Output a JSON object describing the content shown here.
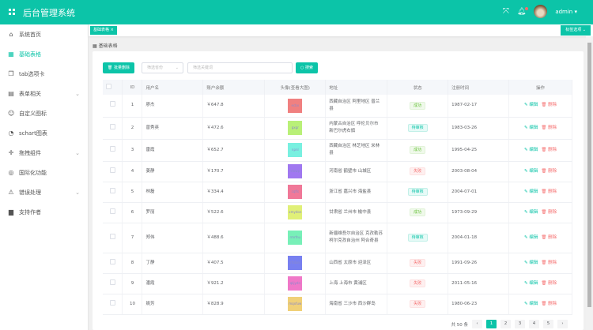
{
  "header": {
    "title": "后台管理系统",
    "user": "admin",
    "colors": {
      "primary": "#0cc4a8"
    }
  },
  "sidebar": {
    "items": [
      {
        "label": "系统首页",
        "icon": "home-icon"
      },
      {
        "label": "基础表格",
        "icon": "grid-icon",
        "active": true
      },
      {
        "label": "tab选项卡",
        "icon": "copy-icon"
      },
      {
        "label": "表单相关",
        "icon": "form-icon",
        "expandable": true
      },
      {
        "label": "自定义图标",
        "icon": "smile-icon"
      },
      {
        "label": "schart图表",
        "icon": "chart-icon"
      },
      {
        "label": "拖拽组件",
        "icon": "move-icon",
        "expandable": true
      },
      {
        "label": "国际化功能",
        "icon": "globe-icon"
      },
      {
        "label": "错误处理",
        "icon": "warning-icon",
        "expandable": true
      },
      {
        "label": "支持作者",
        "icon": "book-icon"
      }
    ]
  },
  "tags": {
    "active": "基础表格",
    "close": "×",
    "options": "标签选项"
  },
  "breadcrumb": "基础表格",
  "toolbar": {
    "batch_delete": "批量删除",
    "province_placeholder": "筛选省份",
    "keyword_placeholder": "筛选关键词",
    "search": "搜索"
  },
  "table": {
    "columns": [
      "",
      "ID",
      "用户名",
      "账户余额",
      "头像(查看大图)",
      "地址",
      "状态",
      "注册时间",
      "操作"
    ],
    "edit_label": "编辑",
    "delete_label": "删除",
    "rows": [
      {
        "id": "1",
        "name": "廖杰",
        "balance": "￥647.8",
        "avatar_text": "ecbx",
        "avatar_color": "#f08080",
        "address": "西藏自治区 阿里地区 普兰县",
        "status": "成功",
        "date": "1987-02-17"
      },
      {
        "id": "2",
        "name": "曾秀英",
        "balance": "￥472.6",
        "avatar_text": "gxgr",
        "avatar_color": "#b9f078",
        "address": "内蒙古自治区 呼伦贝尔市 新巴尔虎右旗",
        "status": "待审核",
        "date": "1983-03-26"
      },
      {
        "id": "3",
        "name": "雷霞",
        "balance": "￥652.7",
        "avatar_text": "npnl",
        "avatar_color": "#79f0e0",
        "address": "西藏自治区 林芝地区 米林县",
        "status": "成功",
        "date": "1995-04-25"
      },
      {
        "id": "4",
        "name": "姜静",
        "balance": "￥170.7",
        "avatar_text": "sfewp",
        "avatar_color": "#a078f0",
        "address": "河南省 鹤壁市 山城区",
        "status": "失败",
        "date": "2003-08-04"
      },
      {
        "id": "5",
        "name": "林磊",
        "balance": "￥334.4",
        "avatar_text": "cqfls",
        "avatar_color": "#f07898",
        "address": "浙江省 嘉兴市 海盐县",
        "status": "待审核",
        "date": "2004-07-01"
      },
      {
        "id": "6",
        "name": "罗丽",
        "balance": "￥522.6",
        "avatar_text": "xmydon",
        "avatar_color": "#e0f078",
        "address": "甘肃省 兰州市 榆中县",
        "status": "成功",
        "date": "1973-09-29"
      },
      {
        "id": "7",
        "name": "郑伟",
        "balance": "￥488.6",
        "avatar_text": "rmrfnu",
        "avatar_color": "#78f0b8",
        "address": "新疆维吾尔自治区 克孜勒苏柯尔克孜自治州 阿合奇县",
        "status": "待审核",
        "date": "2004-01-18"
      },
      {
        "id": "8",
        "name": "丁静",
        "balance": "￥407.5",
        "avatar_text": "rfnbxk",
        "avatar_color": "#7880f0",
        "address": "山西省 太原市 迎泽区",
        "status": "失败",
        "date": "1991-09-26"
      },
      {
        "id": "9",
        "name": "潘霞",
        "balance": "￥921.2",
        "avatar_text": "qkjydn",
        "avatar_color": "#f078c8",
        "address": "上海 上海市 黄浦区",
        "status": "失败",
        "date": "2011-05-16"
      },
      {
        "id": "10",
        "name": "姚芳",
        "balance": "￥828.9",
        "avatar_text": "mqxfuw",
        "avatar_color": "#f0d078",
        "address": "海南省 三沙市 西沙群岛",
        "status": "失败",
        "date": "1980-06-23"
      }
    ]
  },
  "pagination": {
    "total": "共 50 条",
    "pages": [
      "1",
      "2",
      "3",
      "4",
      "5"
    ],
    "current": "1"
  }
}
